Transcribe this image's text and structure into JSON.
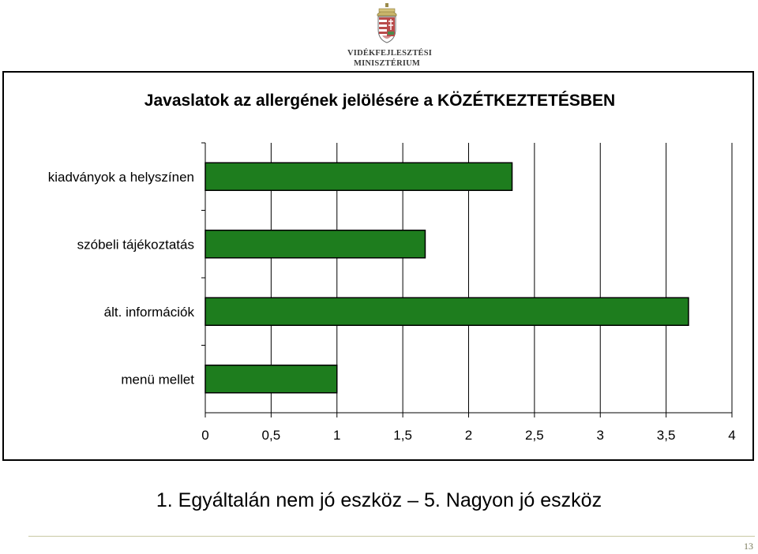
{
  "logo": {
    "icon": "hungarian-coat-of-arms-icon",
    "line1": "VIDÉKFEJLESZTÉSI",
    "line2": "MINISZTÉRIUM"
  },
  "chart_data": {
    "type": "bar",
    "orientation": "horizontal",
    "title": "Javaslatok az allergének jelölésére a KÖZÉTKEZTETÉSBEN",
    "categories": [
      "kiadványok a helyszínen",
      "szóbeli tájékoztatás",
      "ált. információk",
      "menü mellet"
    ],
    "values": [
      2.33,
      1.67,
      3.67,
      1.0
    ],
    "xlim": [
      0,
      4
    ],
    "xticks": [
      "0",
      "0,5",
      "1",
      "1,5",
      "2",
      "2,5",
      "3",
      "3,5",
      "4"
    ],
    "grid": true,
    "bar_color": "#1e7d1e",
    "xlabel": "",
    "ylabel": ""
  },
  "caption": "1. Egyáltalán nem jó eszköz – 5. Nagyon jó eszköz",
  "page_number": "13"
}
